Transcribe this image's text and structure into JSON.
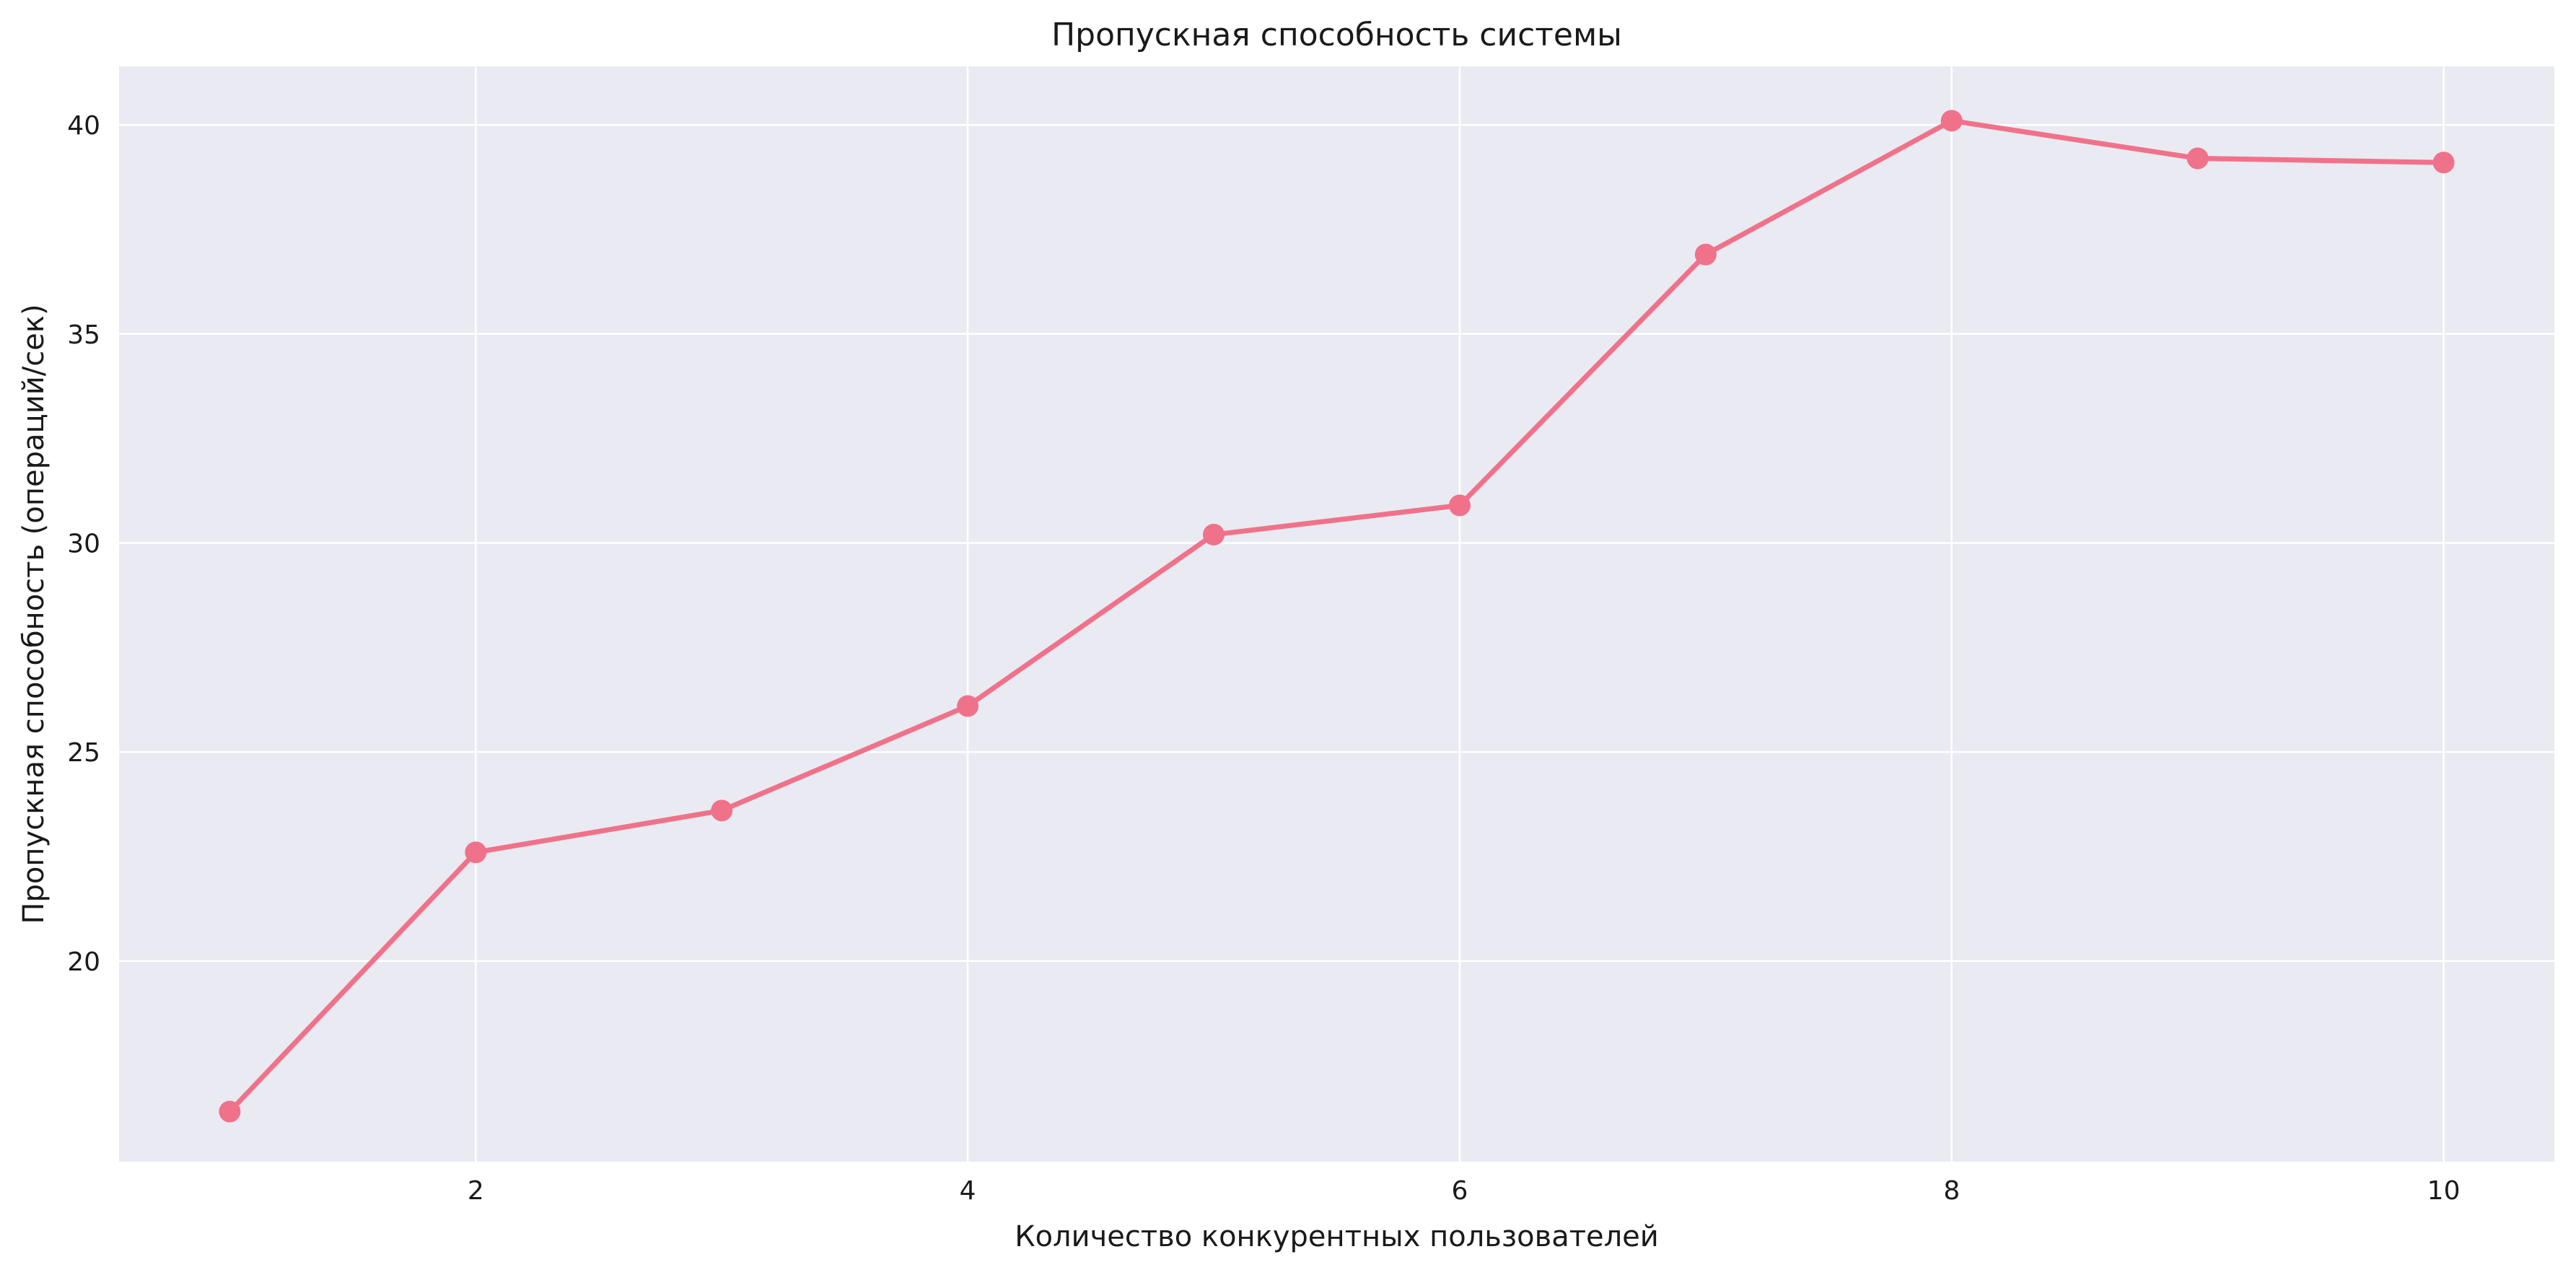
{
  "chart_data": {
    "type": "line",
    "title": "Пропускная способность системы",
    "xlabel": "Количество конкурентных пользователей",
    "ylabel": "Пропускная способность (операций/сек)",
    "x": [
      1,
      2,
      3,
      4,
      5,
      6,
      7,
      8,
      9,
      10
    ],
    "series": [
      {
        "values": [
          16.4,
          22.6,
          23.6,
          26.1,
          30.2,
          30.9,
          36.9,
          40.1,
          39.2,
          39.1
        ]
      }
    ],
    "xlim": [
      0.55,
      10.45
    ],
    "ylim": [
      15.2,
      41.4
    ],
    "xticks": [
      2,
      4,
      6,
      8,
      10
    ],
    "yticks": [
      20,
      25,
      30,
      35,
      40
    ],
    "grid": true,
    "marker": "circle",
    "colors": {
      "line": "#f0728a",
      "plot_background": "#eaeaf2",
      "grid": "#ffffff"
    }
  }
}
